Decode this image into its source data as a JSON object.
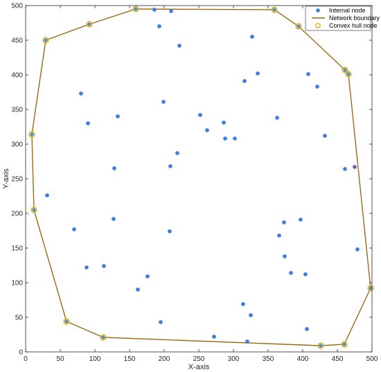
{
  "chart_data": {
    "type": "scatter",
    "xlabel": "X-axis",
    "ylabel": "Y-axis",
    "xlim": [
      0,
      500
    ],
    "ylim": [
      0,
      500
    ],
    "xticks": [
      "0",
      "50",
      "100",
      "150",
      "200",
      "250",
      "300",
      "350",
      "400",
      "450",
      "500"
    ],
    "yticks": [
      "0",
      "50",
      "100",
      "150",
      "200",
      "250",
      "300",
      "350",
      "400",
      "450",
      "500"
    ],
    "grid": false,
    "legend_position": "top-right",
    "legend": {
      "internal": "Internal node",
      "boundary": "Network boundary",
      "hull": "Convex hull node"
    },
    "colors": {
      "internal": "#3d7fdd",
      "boundary": "#9a6b12",
      "hull_ring": "#e0b414",
      "hull_fill": "#4a90d9",
      "highlight": "#7a55c4"
    },
    "internal_nodes": [
      [
        186,
        494
      ],
      [
        210,
        492
      ],
      [
        193,
        470
      ],
      [
        222,
        442
      ],
      [
        327,
        455
      ],
      [
        335,
        402
      ],
      [
        316,
        391
      ],
      [
        408,
        401
      ],
      [
        421,
        383
      ],
      [
        199,
        361
      ],
      [
        80,
        373
      ],
      [
        90,
        330
      ],
      [
        133,
        340
      ],
      [
        252,
        342
      ],
      [
        262,
        320
      ],
      [
        286,
        331
      ],
      [
        288,
        308
      ],
      [
        302,
        308
      ],
      [
        363,
        338
      ],
      [
        432,
        312
      ],
      [
        219,
        287
      ],
      [
        209,
        268
      ],
      [
        128,
        265
      ],
      [
        461,
        264
      ],
      [
        31,
        226
      ],
      [
        127,
        192
      ],
      [
        70,
        177
      ],
      [
        208,
        174
      ],
      [
        373,
        187
      ],
      [
        397,
        191
      ],
      [
        366,
        168
      ],
      [
        479,
        148
      ],
      [
        374,
        138
      ],
      [
        88,
        122
      ],
      [
        113,
        124
      ],
      [
        176,
        109
      ],
      [
        383,
        114
      ],
      [
        404,
        112
      ],
      [
        162,
        90
      ],
      [
        314,
        69
      ],
      [
        325,
        53
      ],
      [
        195,
        43
      ],
      [
        406,
        33
      ],
      [
        272,
        22
      ],
      [
        320,
        15
      ]
    ],
    "highlight_nodes": [
      [
        475,
        267
      ]
    ],
    "hull_nodes": [
      [
        159,
        495
      ],
      [
        359,
        494
      ],
      [
        394,
        470
      ],
      [
        461,
        407
      ],
      [
        466,
        401
      ],
      [
        498,
        92
      ],
      [
        460,
        11
      ],
      [
        426,
        9
      ],
      [
        112,
        21
      ],
      [
        59,
        44
      ],
      [
        12,
        205
      ],
      [
        9,
        314
      ],
      [
        29,
        450
      ],
      [
        92,
        473
      ]
    ]
  }
}
